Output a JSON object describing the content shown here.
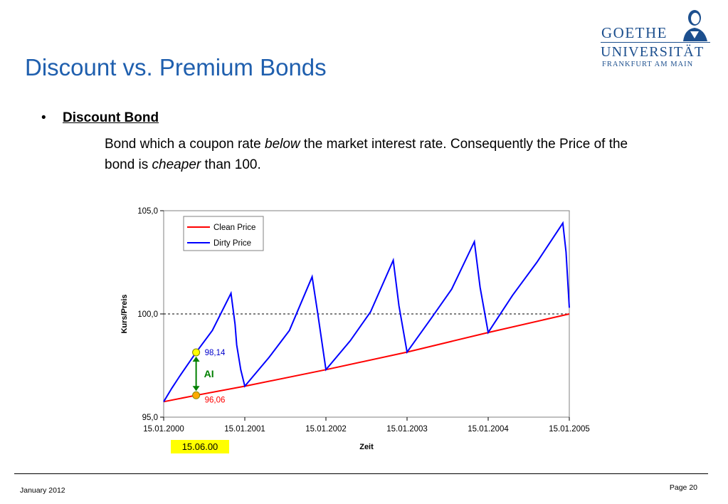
{
  "slide": {
    "title": "Discount vs. Premium Bonds",
    "bullet_symbol": "•",
    "bullet_heading": "Discount Bond",
    "paragraph": {
      "part1": "Bond which a coupon rate ",
      "em1": "below",
      "part2": " the market interest rate. Consequently the Price of the bond is ",
      "em2": "cheaper",
      "part3": " than 100."
    }
  },
  "logo": {
    "line1": "GOETHE",
    "line2": "UNIVERSITÄT",
    "line3": "FRANKFURT AM MAIN",
    "color": "#1c4f8e"
  },
  "footer": {
    "date": "January 2012",
    "page": "Page 20"
  },
  "chart_data": {
    "type": "line",
    "ylabel": "Kurs/Preis",
    "xlabel": "Zeit",
    "ylim": [
      95.0,
      105.0
    ],
    "y_ticks": [
      "95,0",
      "100,0",
      "105,0"
    ],
    "x_ticks": [
      "15.01.2000",
      "15.01.2001",
      "15.01.2002",
      "15.01.2003",
      "15.01.2004",
      "15.01.2005"
    ],
    "reference_line": 100.0,
    "legend_position": "top-left",
    "series": [
      {
        "name": "Clean Price",
        "color": "#ff0000",
        "points": [
          [
            0.0,
            95.75
          ],
          [
            0.4,
            96.06
          ],
          [
            1.0,
            96.5
          ],
          [
            2.0,
            97.3
          ],
          [
            3.0,
            98.15
          ],
          [
            4.0,
            99.1
          ],
          [
            5.0,
            100.0
          ]
        ]
      },
      {
        "name": "Dirty Price",
        "color": "#0000ff",
        "points": [
          [
            0.0,
            95.75
          ],
          [
            0.1,
            96.4
          ],
          [
            0.2,
            97.0
          ],
          [
            0.4,
            98.14
          ],
          [
            0.6,
            99.2
          ],
          [
            0.83,
            101.0
          ],
          [
            0.88,
            99.5
          ],
          [
            0.9,
            98.5
          ],
          [
            0.95,
            97.3
          ],
          [
            1.0,
            96.5
          ],
          [
            1.3,
            97.9
          ],
          [
            1.55,
            99.2
          ],
          [
            1.83,
            101.8
          ],
          [
            1.9,
            100.0
          ],
          [
            2.0,
            97.3
          ],
          [
            2.3,
            98.7
          ],
          [
            2.55,
            100.1
          ],
          [
            2.83,
            102.6
          ],
          [
            2.9,
            100.4
          ],
          [
            3.0,
            98.15
          ],
          [
            3.3,
            99.8
          ],
          [
            3.55,
            101.2
          ],
          [
            3.83,
            103.5
          ],
          [
            3.9,
            101.3
          ],
          [
            4.0,
            99.1
          ],
          [
            4.3,
            100.9
          ],
          [
            4.6,
            102.5
          ],
          [
            4.92,
            104.4
          ],
          [
            4.96,
            103.0
          ],
          [
            5.0,
            100.3
          ]
        ]
      }
    ],
    "markers": [
      {
        "x": 0.4,
        "y": 98.14,
        "label": "98,14",
        "label_color": "#0000cc",
        "fill": "#ffff00"
      },
      {
        "x": 0.4,
        "y": 96.06,
        "label": "96,06",
        "label_color": "#ff0000",
        "fill": "#ffaa00"
      }
    ],
    "ai_arrow": {
      "label": "AI",
      "color": "#008000"
    },
    "highlight_date": {
      "label": "15.06.00",
      "bg": "#ffff00"
    }
  }
}
